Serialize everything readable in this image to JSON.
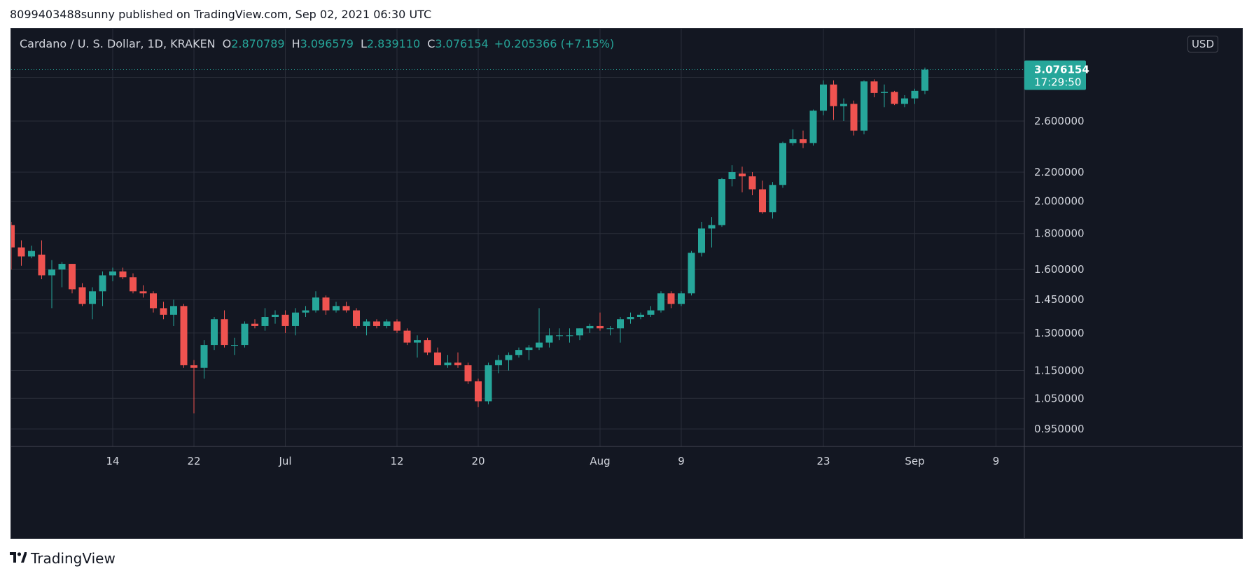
{
  "header": {
    "published_text": "8099403488sunny published on TradingView.com, Sep 02, 2021 06:30 UTC"
  },
  "legend": {
    "symbol": "Cardano / U. S. Dollar, 1D, KRAKEN",
    "open_label": "O",
    "open_value": "2.870789",
    "high_label": "H",
    "high_value": "3.096579",
    "low_label": "L",
    "low_value": "2.839110",
    "close_label": "C",
    "close_value": "3.076154",
    "change_value": "+0.205366 (+7.15%)"
  },
  "currency_button": "USD",
  "price_label": {
    "price": "3.076154",
    "countdown": "17:29:50"
  },
  "brand": {
    "name": "TradingView"
  },
  "colors": {
    "background": "#131722",
    "up": "#26a69a",
    "down": "#ef5350",
    "grid": "#2a2e39",
    "text": "#d1d4dc"
  },
  "chart_data": {
    "type": "candlestick",
    "scale": "log",
    "y_ticks": [
      0.95,
      1.05,
      1.15,
      1.3,
      1.45,
      1.6,
      1.8,
      2.0,
      2.2,
      2.6,
      3.0
    ],
    "y_tick_labels": [
      "0.950000",
      "1.050000",
      "1.150000",
      "1.300000",
      "1.450000",
      "1.600000",
      "1.800000",
      "2.000000",
      "2.200000",
      "2.600000",
      "3.000000"
    ],
    "y_top_label_visible": "3.",
    "x_ticks": [
      {
        "label": "14",
        "date": "2021-06-14"
      },
      {
        "label": "22",
        "date": "2021-06-22"
      },
      {
        "label": "Jul",
        "date": "2021-07-01"
      },
      {
        "label": "12",
        "date": "2021-07-12"
      },
      {
        "label": "20",
        "date": "2021-07-20"
      },
      {
        "label": "Aug",
        "date": "2021-08-01"
      },
      {
        "label": "9",
        "date": "2021-08-09"
      },
      {
        "label": "23",
        "date": "2021-08-23"
      },
      {
        "label": "Sep",
        "date": "2021-09-01"
      },
      {
        "label": "9",
        "date": "2021-09-09"
      }
    ],
    "grid": true,
    "last_price": 3.076154,
    "candles": [
      {
        "date": "2021-06-04",
        "o": 1.85,
        "h": 1.87,
        "l": 1.6,
        "c": 1.72
      },
      {
        "date": "2021-06-05",
        "o": 1.72,
        "h": 1.76,
        "l": 1.62,
        "c": 1.67
      },
      {
        "date": "2021-06-06",
        "o": 1.67,
        "h": 1.73,
        "l": 1.66,
        "c": 1.7
      },
      {
        "date": "2021-06-07",
        "o": 1.68,
        "h": 1.76,
        "l": 1.55,
        "c": 1.57
      },
      {
        "date": "2021-06-08",
        "o": 1.57,
        "h": 1.65,
        "l": 1.41,
        "c": 1.6
      },
      {
        "date": "2021-06-09",
        "o": 1.6,
        "h": 1.64,
        "l": 1.51,
        "c": 1.63
      },
      {
        "date": "2021-06-10",
        "o": 1.63,
        "h": 1.63,
        "l": 1.48,
        "c": 1.5
      },
      {
        "date": "2021-06-11",
        "o": 1.51,
        "h": 1.53,
        "l": 1.42,
        "c": 1.43
      },
      {
        "date": "2021-06-12",
        "o": 1.43,
        "h": 1.51,
        "l": 1.36,
        "c": 1.49
      },
      {
        "date": "2021-06-13",
        "o": 1.49,
        "h": 1.59,
        "l": 1.42,
        "c": 1.57
      },
      {
        "date": "2021-06-14",
        "o": 1.57,
        "h": 1.61,
        "l": 1.54,
        "c": 1.59
      },
      {
        "date": "2021-06-15",
        "o": 1.59,
        "h": 1.61,
        "l": 1.55,
        "c": 1.56
      },
      {
        "date": "2021-06-16",
        "o": 1.56,
        "h": 1.58,
        "l": 1.48,
        "c": 1.49
      },
      {
        "date": "2021-06-17",
        "o": 1.49,
        "h": 1.52,
        "l": 1.46,
        "c": 1.48
      },
      {
        "date": "2021-06-18",
        "o": 1.48,
        "h": 1.49,
        "l": 1.39,
        "c": 1.41
      },
      {
        "date": "2021-06-19",
        "o": 1.41,
        "h": 1.44,
        "l": 1.36,
        "c": 1.38
      },
      {
        "date": "2021-06-20",
        "o": 1.38,
        "h": 1.45,
        "l": 1.33,
        "c": 1.42
      },
      {
        "date": "2021-06-21",
        "o": 1.42,
        "h": 1.43,
        "l": 1.16,
        "c": 1.17
      },
      {
        "date": "2021-06-22",
        "o": 1.17,
        "h": 1.19,
        "l": 1.0,
        "c": 1.16
      },
      {
        "date": "2021-06-23",
        "o": 1.16,
        "h": 1.27,
        "l": 1.12,
        "c": 1.25
      },
      {
        "date": "2021-06-24",
        "o": 1.25,
        "h": 1.37,
        "l": 1.23,
        "c": 1.36
      },
      {
        "date": "2021-06-25",
        "o": 1.36,
        "h": 1.4,
        "l": 1.24,
        "c": 1.25
      },
      {
        "date": "2021-06-26",
        "o": 1.25,
        "h": 1.28,
        "l": 1.21,
        "c": 1.25
      },
      {
        "date": "2021-06-27",
        "o": 1.25,
        "h": 1.35,
        "l": 1.24,
        "c": 1.34
      },
      {
        "date": "2021-06-28",
        "o": 1.34,
        "h": 1.36,
        "l": 1.32,
        "c": 1.33
      },
      {
        "date": "2021-06-29",
        "o": 1.33,
        "h": 1.41,
        "l": 1.31,
        "c": 1.37
      },
      {
        "date": "2021-06-30",
        "o": 1.37,
        "h": 1.4,
        "l": 1.34,
        "c": 1.38
      },
      {
        "date": "2021-07-01",
        "o": 1.38,
        "h": 1.4,
        "l": 1.3,
        "c": 1.33
      },
      {
        "date": "2021-07-02",
        "o": 1.33,
        "h": 1.41,
        "l": 1.29,
        "c": 1.39
      },
      {
        "date": "2021-07-03",
        "o": 1.39,
        "h": 1.42,
        "l": 1.37,
        "c": 1.4
      },
      {
        "date": "2021-07-04",
        "o": 1.4,
        "h": 1.49,
        "l": 1.39,
        "c": 1.46
      },
      {
        "date": "2021-07-05",
        "o": 1.46,
        "h": 1.47,
        "l": 1.38,
        "c": 1.4
      },
      {
        "date": "2021-07-06",
        "o": 1.4,
        "h": 1.44,
        "l": 1.39,
        "c": 1.42
      },
      {
        "date": "2021-07-07",
        "o": 1.42,
        "h": 1.44,
        "l": 1.39,
        "c": 1.4
      },
      {
        "date": "2021-07-08",
        "o": 1.4,
        "h": 1.41,
        "l": 1.32,
        "c": 1.33
      },
      {
        "date": "2021-07-09",
        "o": 1.33,
        "h": 1.36,
        "l": 1.29,
        "c": 1.35
      },
      {
        "date": "2021-07-10",
        "o": 1.35,
        "h": 1.36,
        "l": 1.32,
        "c": 1.33
      },
      {
        "date": "2021-07-11",
        "o": 1.33,
        "h": 1.36,
        "l": 1.32,
        "c": 1.35
      },
      {
        "date": "2021-07-12",
        "o": 1.35,
        "h": 1.36,
        "l": 1.3,
        "c": 1.31
      },
      {
        "date": "2021-07-13",
        "o": 1.31,
        "h": 1.32,
        "l": 1.25,
        "c": 1.26
      },
      {
        "date": "2021-07-14",
        "o": 1.26,
        "h": 1.29,
        "l": 1.2,
        "c": 1.27
      },
      {
        "date": "2021-07-15",
        "o": 1.27,
        "h": 1.28,
        "l": 1.21,
        "c": 1.22
      },
      {
        "date": "2021-07-16",
        "o": 1.22,
        "h": 1.24,
        "l": 1.17,
        "c": 1.17
      },
      {
        "date": "2021-07-17",
        "o": 1.17,
        "h": 1.21,
        "l": 1.16,
        "c": 1.18
      },
      {
        "date": "2021-07-18",
        "o": 1.18,
        "h": 1.22,
        "l": 1.16,
        "c": 1.17
      },
      {
        "date": "2021-07-19",
        "o": 1.17,
        "h": 1.18,
        "l": 1.1,
        "c": 1.11
      },
      {
        "date": "2021-07-20",
        "o": 1.11,
        "h": 1.12,
        "l": 1.02,
        "c": 1.04
      },
      {
        "date": "2021-07-21",
        "o": 1.04,
        "h": 1.18,
        "l": 1.03,
        "c": 1.17
      },
      {
        "date": "2021-07-22",
        "o": 1.17,
        "h": 1.21,
        "l": 1.14,
        "c": 1.19
      },
      {
        "date": "2021-07-23",
        "o": 1.19,
        "h": 1.22,
        "l": 1.15,
        "c": 1.21
      },
      {
        "date": "2021-07-24",
        "o": 1.21,
        "h": 1.24,
        "l": 1.2,
        "c": 1.23
      },
      {
        "date": "2021-07-25",
        "o": 1.23,
        "h": 1.25,
        "l": 1.19,
        "c": 1.24
      },
      {
        "date": "2021-07-26",
        "o": 1.24,
        "h": 1.41,
        "l": 1.23,
        "c": 1.26
      },
      {
        "date": "2021-07-27",
        "o": 1.26,
        "h": 1.32,
        "l": 1.24,
        "c": 1.29
      },
      {
        "date": "2021-07-28",
        "o": 1.29,
        "h": 1.32,
        "l": 1.27,
        "c": 1.29
      },
      {
        "date": "2021-07-29",
        "o": 1.29,
        "h": 1.32,
        "l": 1.26,
        "c": 1.29
      },
      {
        "date": "2021-07-30",
        "o": 1.29,
        "h": 1.32,
        "l": 1.27,
        "c": 1.32
      },
      {
        "date": "2021-07-31",
        "o": 1.32,
        "h": 1.34,
        "l": 1.3,
        "c": 1.33
      },
      {
        "date": "2021-08-01",
        "o": 1.33,
        "h": 1.39,
        "l": 1.31,
        "c": 1.32
      },
      {
        "date": "2021-08-02",
        "o": 1.32,
        "h": 1.33,
        "l": 1.29,
        "c": 1.32
      },
      {
        "date": "2021-08-03",
        "o": 1.32,
        "h": 1.37,
        "l": 1.26,
        "c": 1.36
      },
      {
        "date": "2021-08-04",
        "o": 1.36,
        "h": 1.39,
        "l": 1.34,
        "c": 1.37
      },
      {
        "date": "2021-08-05",
        "o": 1.37,
        "h": 1.39,
        "l": 1.36,
        "c": 1.38
      },
      {
        "date": "2021-08-06",
        "o": 1.38,
        "h": 1.42,
        "l": 1.37,
        "c": 1.4
      },
      {
        "date": "2021-08-07",
        "o": 1.4,
        "h": 1.49,
        "l": 1.39,
        "c": 1.48
      },
      {
        "date": "2021-08-08",
        "o": 1.48,
        "h": 1.49,
        "l": 1.41,
        "c": 1.43
      },
      {
        "date": "2021-08-09",
        "o": 1.43,
        "h": 1.49,
        "l": 1.42,
        "c": 1.48
      },
      {
        "date": "2021-08-10",
        "o": 1.48,
        "h": 1.7,
        "l": 1.47,
        "c": 1.69
      },
      {
        "date": "2021-08-11",
        "o": 1.69,
        "h": 1.87,
        "l": 1.67,
        "c": 1.83
      },
      {
        "date": "2021-08-12",
        "o": 1.83,
        "h": 1.9,
        "l": 1.72,
        "c": 1.85
      },
      {
        "date": "2021-08-13",
        "o": 1.85,
        "h": 2.16,
        "l": 1.84,
        "c": 2.15
      },
      {
        "date": "2021-08-14",
        "o": 2.15,
        "h": 2.25,
        "l": 2.1,
        "c": 2.2
      },
      {
        "date": "2021-08-15",
        "o": 2.19,
        "h": 2.24,
        "l": 2.06,
        "c": 2.17
      },
      {
        "date": "2021-08-16",
        "o": 2.17,
        "h": 2.2,
        "l": 2.04,
        "c": 2.08
      },
      {
        "date": "2021-08-17",
        "o": 2.08,
        "h": 2.14,
        "l": 1.92,
        "c": 1.93
      },
      {
        "date": "2021-08-18",
        "o": 1.93,
        "h": 2.13,
        "l": 1.89,
        "c": 2.11
      },
      {
        "date": "2021-08-19",
        "o": 2.11,
        "h": 2.43,
        "l": 2.09,
        "c": 2.42
      },
      {
        "date": "2021-08-20",
        "o": 2.42,
        "h": 2.53,
        "l": 2.4,
        "c": 2.45
      },
      {
        "date": "2021-08-21",
        "o": 2.45,
        "h": 2.52,
        "l": 2.38,
        "c": 2.42
      },
      {
        "date": "2021-08-22",
        "o": 2.42,
        "h": 2.7,
        "l": 2.4,
        "c": 2.69
      },
      {
        "date": "2021-08-23",
        "o": 2.69,
        "h": 2.97,
        "l": 2.65,
        "c": 2.93
      },
      {
        "date": "2021-08-24",
        "o": 2.93,
        "h": 2.97,
        "l": 2.61,
        "c": 2.73
      },
      {
        "date": "2021-08-25",
        "o": 2.73,
        "h": 2.8,
        "l": 2.6,
        "c": 2.75
      },
      {
        "date": "2021-08-26",
        "o": 2.75,
        "h": 2.78,
        "l": 2.48,
        "c": 2.52
      },
      {
        "date": "2021-08-27",
        "o": 2.52,
        "h": 2.97,
        "l": 2.49,
        "c": 2.96
      },
      {
        "date": "2021-08-28",
        "o": 2.96,
        "h": 2.98,
        "l": 2.81,
        "c": 2.85
      },
      {
        "date": "2021-08-29",
        "o": 2.85,
        "h": 2.93,
        "l": 2.72,
        "c": 2.86
      },
      {
        "date": "2021-08-30",
        "o": 2.86,
        "h": 2.87,
        "l": 2.74,
        "c": 2.75
      },
      {
        "date": "2021-08-31",
        "o": 2.75,
        "h": 2.83,
        "l": 2.72,
        "c": 2.8
      },
      {
        "date": "2021-09-01",
        "o": 2.8,
        "h": 2.89,
        "l": 2.75,
        "c": 2.87
      },
      {
        "date": "2021-09-02",
        "o": 2.870789,
        "h": 3.096579,
        "l": 2.83911,
        "c": 3.076154
      }
    ]
  }
}
